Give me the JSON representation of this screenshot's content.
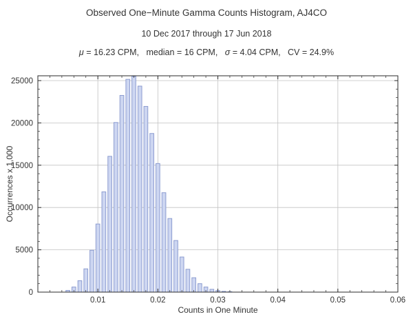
{
  "chart_data": {
    "type": "bar",
    "title": "Observed One−Minute Gamma Counts Histogram, AJ4CO",
    "subtitle": "10 Dec 2017 through 17 Jun 2018",
    "stats": {
      "mu_symbol": "μ",
      "mu_rest": " = 16.23 CPM,   median = 16 CPM,   ",
      "sigma_symbol": "σ",
      "sigma_rest": " = 4.04 CPM,   CV = 24.9%"
    },
    "xlabel": "Counts in One Minute",
    "ylabel": "Occurrences x 1,000",
    "xlim": [
      0,
      0.06
    ],
    "ylim": [
      0,
      25570
    ],
    "x_ticks": [
      0.01,
      0.02,
      0.03,
      0.04,
      0.05,
      0.06
    ],
    "x_tick_labels": [
      "0.01",
      "0.02",
      "0.03",
      "0.04",
      "0.05",
      "0.06"
    ],
    "x_minor_step": 0.002,
    "y_ticks": [
      0,
      5000,
      10000,
      15000,
      20000,
      25000
    ],
    "y_tick_labels": [
      "0",
      "5000",
      "10000",
      "15000",
      "20000",
      "25000"
    ],
    "y_minor_step": 1000,
    "grid": true,
    "grid_color": "#c2c2c2",
    "bar_fill": "#cdd6f1",
    "bar_stroke": "#8c9cd0",
    "frame_color": "#2a2a2a",
    "x": [
      0.005,
      0.006,
      0.007,
      0.008,
      0.009,
      0.01,
      0.011,
      0.012,
      0.013,
      0.014,
      0.015,
      0.016,
      0.017,
      0.018,
      0.019,
      0.02,
      0.021,
      0.022,
      0.023,
      0.024,
      0.025,
      0.026,
      0.027,
      0.028,
      0.029,
      0.03,
      0.031,
      0.032
    ],
    "values": [
      200,
      600,
      1350,
      2750,
      4950,
      8050,
      11850,
      16050,
      20050,
      23250,
      25150,
      25500,
      24350,
      21950,
      18750,
      15200,
      11750,
      8700,
      6100,
      4150,
      2700,
      1700,
      1000,
      600,
      330,
      180,
      90,
      50
    ]
  }
}
